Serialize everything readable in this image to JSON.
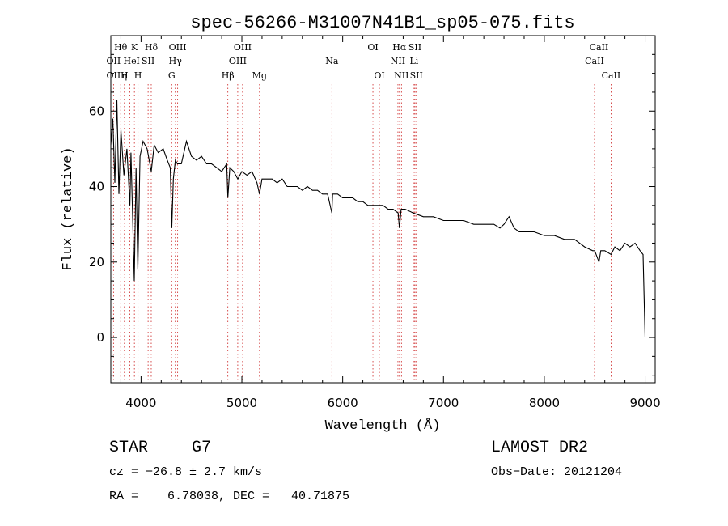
{
  "chart_data": {
    "type": "line",
    "title": "spec-56266-M31007N41B1_sp05-075.fits",
    "xlabel": "Wavelength (Å)",
    "ylabel": "Flux (relative)",
    "xlim": [
      3700,
      9100
    ],
    "ylim": [
      -12,
      80
    ],
    "xticks": [
      4000,
      5000,
      6000,
      7000,
      8000,
      9000
    ],
    "yticks": [
      0,
      20,
      40,
      60
    ],
    "grid": false,
    "series": [
      {
        "x": [
          3700,
          3720,
          3740,
          3760,
          3780,
          3800,
          3830,
          3860,
          3889,
          3900,
          3933,
          3950,
          3968,
          3990,
          4020,
          4060,
          4101,
          4130,
          4170,
          4220,
          4260,
          4290,
          4305,
          4320,
          4340,
          4360,
          4400,
          4450,
          4500,
          4550,
          4600,
          4650,
          4700,
          4750,
          4800,
          4850,
          4861,
          4880,
          4920,
          4960,
          5000,
          5050,
          5100,
          5150,
          5175,
          5200,
          5250,
          5300,
          5350,
          5400,
          5450,
          5500,
          5550,
          5600,
          5650,
          5700,
          5750,
          5800,
          5850,
          5893,
          5900,
          5950,
          6000,
          6050,
          6100,
          6150,
          6200,
          6250,
          6300,
          6350,
          6400,
          6450,
          6500,
          6550,
          6563,
          6580,
          6620,
          6700,
          6800,
          6900,
          7000,
          7100,
          7200,
          7300,
          7400,
          7500,
          7560,
          7600,
          7650,
          7700,
          7750,
          7800,
          7900,
          8000,
          8100,
          8200,
          8300,
          8400,
          8480,
          8500,
          8542,
          8560,
          8600,
          8662,
          8700,
          8750,
          8800,
          8850,
          8900,
          8950,
          8980,
          9000
        ],
        "y": [
          51,
          58,
          41,
          63,
          38,
          55,
          43,
          50,
          35,
          49,
          15,
          45,
          18,
          48,
          52,
          50,
          44,
          51,
          49,
          50,
          47,
          45,
          29,
          42,
          47,
          46,
          46,
          52,
          48,
          47,
          48,
          46,
          46,
          45,
          44,
          46,
          37,
          45,
          44,
          42,
          44,
          43,
          44,
          41,
          38,
          42,
          42,
          42,
          41,
          42,
          40,
          40,
          40,
          39,
          40,
          39,
          39,
          38,
          38,
          33,
          38,
          38,
          37,
          37,
          37,
          36,
          36,
          35,
          35,
          35,
          35,
          34,
          34,
          33,
          29,
          34,
          34,
          33,
          32,
          32,
          31,
          31,
          31,
          30,
          30,
          30,
          29,
          30,
          32,
          29,
          28,
          28,
          28,
          27,
          27,
          26,
          26,
          24,
          23,
          23,
          20,
          23,
          23,
          22,
          24,
          23,
          25,
          24,
          25,
          23,
          22,
          0
        ]
      }
    ],
    "lines": [
      {
        "label": "Hθ",
        "x": 3798,
        "row": 0,
        "color": "#000000"
      },
      {
        "label": "OII",
        "x": 3727,
        "row": 1,
        "color": "#000000"
      },
      {
        "label": "OII",
        "x": 3727,
        "row": 2,
        "color": "#000000"
      },
      {
        "label": "H",
        "x": 3835,
        "row": 2,
        "color": "#000000"
      },
      {
        "label": "η",
        "x": 3835,
        "row": 2,
        "color": "#000000"
      },
      {
        "label": "He",
        "x": 3889,
        "row": 1,
        "color": "#000000"
      },
      {
        "label": "K",
        "x": 3934,
        "row": 0,
        "color": "#000000"
      },
      {
        "label": "H",
        "x": 3969,
        "row": 2,
        "color": "#000000"
      },
      {
        "label": "I",
        "x": 3970,
        "row": 1,
        "color": "#000000"
      },
      {
        "label": "SII",
        "x": 4070,
        "row": 1,
        "color": "#000000"
      },
      {
        "label": "Hδ",
        "x": 4101,
        "row": 0,
        "color": "#000000"
      },
      {
        "label": "OIII",
        "x": 4363,
        "row": 0,
        "color": "#000000"
      },
      {
        "label": "Hγ",
        "x": 4340,
        "row": 1,
        "color": "#000000"
      },
      {
        "label": "G",
        "x": 4304,
        "row": 2,
        "color": "#000000"
      },
      {
        "label": "Hβ",
        "x": 4861,
        "row": 2,
        "color": "#000000"
      },
      {
        "label": "OIII",
        "x": 5007,
        "row": 0,
        "color": "#000000"
      },
      {
        "label": "OIII",
        "x": 4959,
        "row": 1,
        "color": "#000000"
      },
      {
        "label": "Mg",
        "x": 5175,
        "row": 2,
        "color": "#000000"
      },
      {
        "label": "Na",
        "x": 5893,
        "row": 1,
        "color": "#000000"
      },
      {
        "label": "OI",
        "x": 6300,
        "row": 0,
        "color": "#000000"
      },
      {
        "label": "OI",
        "x": 6364,
        "row": 2,
        "color": "#000000"
      },
      {
        "label": "Hα",
        "x": 6563,
        "row": 0,
        "color": "#000000"
      },
      {
        "label": "SII",
        "x": 6717,
        "row": 0,
        "color": "#000000"
      },
      {
        "label": "NII",
        "x": 6548,
        "row": 1,
        "color": "#000000"
      },
      {
        "label": "Li",
        "x": 6708,
        "row": 1,
        "color": "#000000"
      },
      {
        "label": "NII",
        "x": 6583,
        "row": 2,
        "color": "#000000"
      },
      {
        "label": "SII",
        "x": 6731,
        "row": 2,
        "color": "#000000"
      },
      {
        "label": "CaII",
        "x": 8542,
        "row": 0,
        "color": "#000000"
      },
      {
        "label": "CaII",
        "x": 8498,
        "row": 1,
        "color": "#000000"
      },
      {
        "label": "CaII",
        "x": 8662,
        "row": 2,
        "color": "#000000"
      }
    ],
    "line_marker_color": "#cc2222"
  },
  "info": {
    "object_class": "STAR",
    "subclass": "G7",
    "survey": "LAMOST DR2",
    "cz": "cz = −26.8 ± 2.7 km/s",
    "obs_date": "Obs−Date: 20121204",
    "coords": "RA =    6.78038, DEC =   40.71875"
  }
}
